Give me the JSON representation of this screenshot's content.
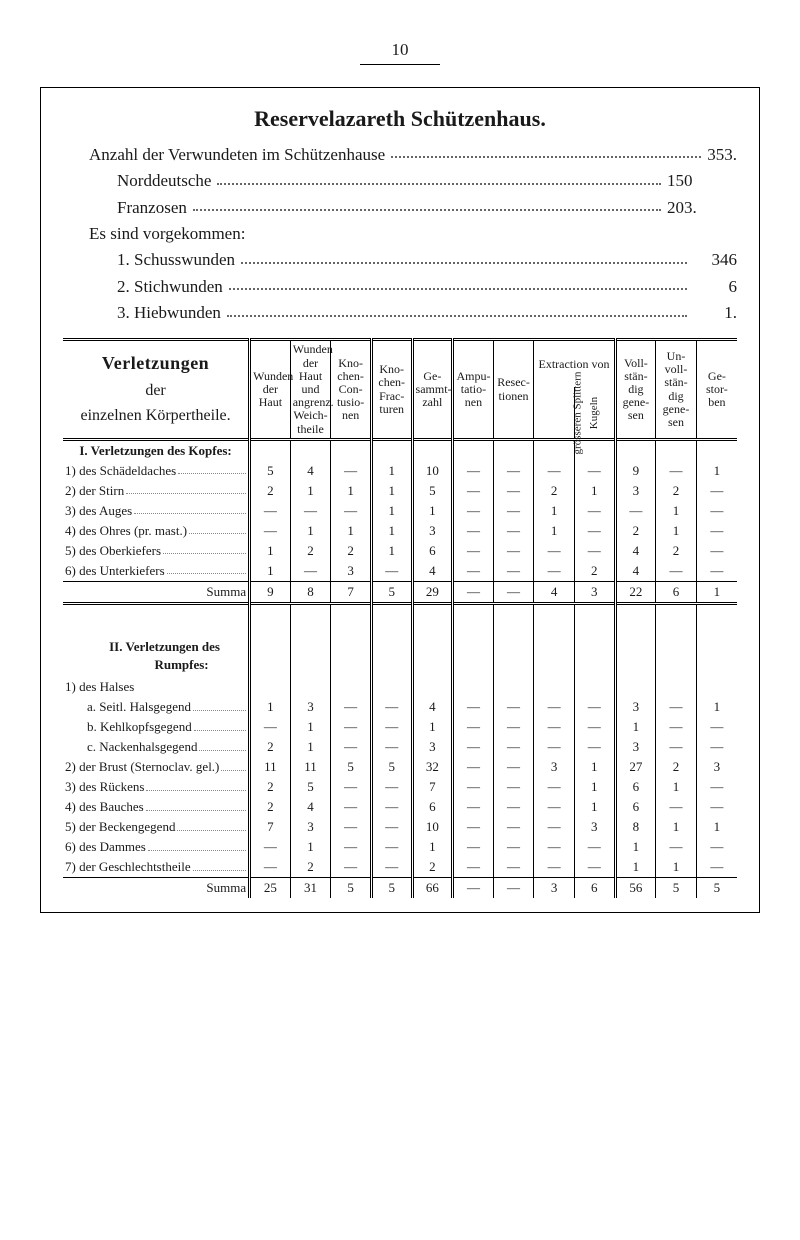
{
  "page_number": "10",
  "title": "Reservelazareth Schützenhaus.",
  "intro": {
    "line_total": {
      "label": "Anzahl der Verwundeten im Schützenhause",
      "value": "353."
    },
    "north": {
      "label": "Norddeutsche",
      "value": "150"
    },
    "french": {
      "label": "Franzosen",
      "value": "203."
    },
    "arrived": "Es sind vorgekommen:",
    "n1": {
      "label": "1. Schusswunden",
      "value": "346"
    },
    "n2": {
      "label": "2. Stichwunden",
      "value": "6"
    },
    "n3": {
      "label": "3. Hiebwunden",
      "value": "1."
    }
  },
  "columns": [
    "Wunden der Haut",
    "Wunden der Haut und angrenz. Weich-theile",
    "Kno-chen-Con-tusio-nen",
    "Kno-chen-Frac-turen",
    "Ge-sammt-zahl",
    "Ampu-tatio-nen",
    "Resec-tionen",
    "Extraction von",
    "grösseren Splittern",
    "Kugeln",
    "Voll-stän-dig gene-sen",
    "Un-voll-stän-dig gene-sen",
    "Ge-stor-ben"
  ],
  "head_left": {
    "l1": "Verletzungen",
    "l2": "der",
    "l3": "einzelnen Körpertheile."
  },
  "section1": {
    "head": "I. Verletzungen des Kopfes:",
    "rows": [
      {
        "label": "1) des Schädeldaches",
        "v": [
          "5",
          "4",
          "—",
          "1",
          "10",
          "—",
          "—",
          "—",
          "—",
          "9",
          "—",
          "1"
        ]
      },
      {
        "label": "2) der Stirn",
        "v": [
          "2",
          "1",
          "1",
          "1",
          "5",
          "—",
          "—",
          "2",
          "1",
          "3",
          "2",
          "—"
        ]
      },
      {
        "label": "3) des Auges",
        "v": [
          "—",
          "—",
          "—",
          "1",
          "1",
          "—",
          "—",
          "1",
          "—",
          "—",
          "1",
          "—"
        ]
      },
      {
        "label": "4) des Ohres (pr. mast.)",
        "v": [
          "—",
          "1",
          "1",
          "1",
          "3",
          "—",
          "—",
          "1",
          "—",
          "2",
          "1",
          "—"
        ]
      },
      {
        "label": "5) des Oberkiefers",
        "v": [
          "1",
          "2",
          "2",
          "1",
          "6",
          "—",
          "—",
          "—",
          "—",
          "4",
          "2",
          "—"
        ]
      },
      {
        "label": "6) des Unterkiefers",
        "v": [
          "1",
          "—",
          "3",
          "—",
          "4",
          "—",
          "—",
          "—",
          "2",
          "4",
          "—",
          "—"
        ]
      }
    ],
    "sum": {
      "label": "Summa",
      "v": [
        "9",
        "8",
        "7",
        "5",
        "29",
        "—",
        "—",
        "4",
        "3",
        "22",
        "6",
        "1"
      ]
    }
  },
  "section2": {
    "head1": "II. Verletzungen des",
    "head2": "Rumpfes:",
    "sub1": "1) des Halses",
    "rows1": [
      {
        "label": "a. Seitl. Halsgegend",
        "indent": 1,
        "v": [
          "1",
          "3",
          "—",
          "—",
          "4",
          "—",
          "—",
          "—",
          "—",
          "3",
          "—",
          "1"
        ]
      },
      {
        "label": "b. Kehlkopfsgegend",
        "indent": 1,
        "v": [
          "—",
          "1",
          "—",
          "—",
          "1",
          "—",
          "—",
          "—",
          "—",
          "1",
          "—",
          "—"
        ]
      },
      {
        "label": "c. Nackenhalsgegend",
        "indent": 1,
        "v": [
          "2",
          "1",
          "—",
          "—",
          "3",
          "—",
          "—",
          "—",
          "—",
          "3",
          "—",
          "—"
        ]
      }
    ],
    "rows2": [
      {
        "label": "2) der Brust (Sternoclav. gel.)",
        "v": [
          "11",
          "11",
          "5",
          "5",
          "32",
          "—",
          "—",
          "3",
          "1",
          "27",
          "2",
          "3"
        ]
      },
      {
        "label": "3) des Rückens",
        "v": [
          "2",
          "5",
          "—",
          "—",
          "7",
          "—",
          "—",
          "—",
          "1",
          "6",
          "1",
          "—"
        ]
      },
      {
        "label": "4) des Bauches",
        "v": [
          "2",
          "4",
          "—",
          "—",
          "6",
          "—",
          "—",
          "—",
          "1",
          "6",
          "—",
          "—"
        ]
      },
      {
        "label": "5) der Beckengegend",
        "v": [
          "7",
          "3",
          "—",
          "—",
          "10",
          "—",
          "—",
          "—",
          "3",
          "8",
          "1",
          "1"
        ]
      },
      {
        "label": "6) des Dammes",
        "v": [
          "—",
          "1",
          "—",
          "—",
          "1",
          "—",
          "—",
          "—",
          "—",
          "1",
          "—",
          "—"
        ]
      },
      {
        "label": "7) der Geschlechtstheile",
        "v": [
          "—",
          "2",
          "—",
          "—",
          "2",
          "—",
          "—",
          "—",
          "—",
          "1",
          "1",
          "—"
        ]
      }
    ],
    "sum": {
      "label": "Summa",
      "v": [
        "25",
        "31",
        "5",
        "5",
        "66",
        "—",
        "—",
        "3",
        "6",
        "56",
        "5",
        "5"
      ]
    }
  }
}
